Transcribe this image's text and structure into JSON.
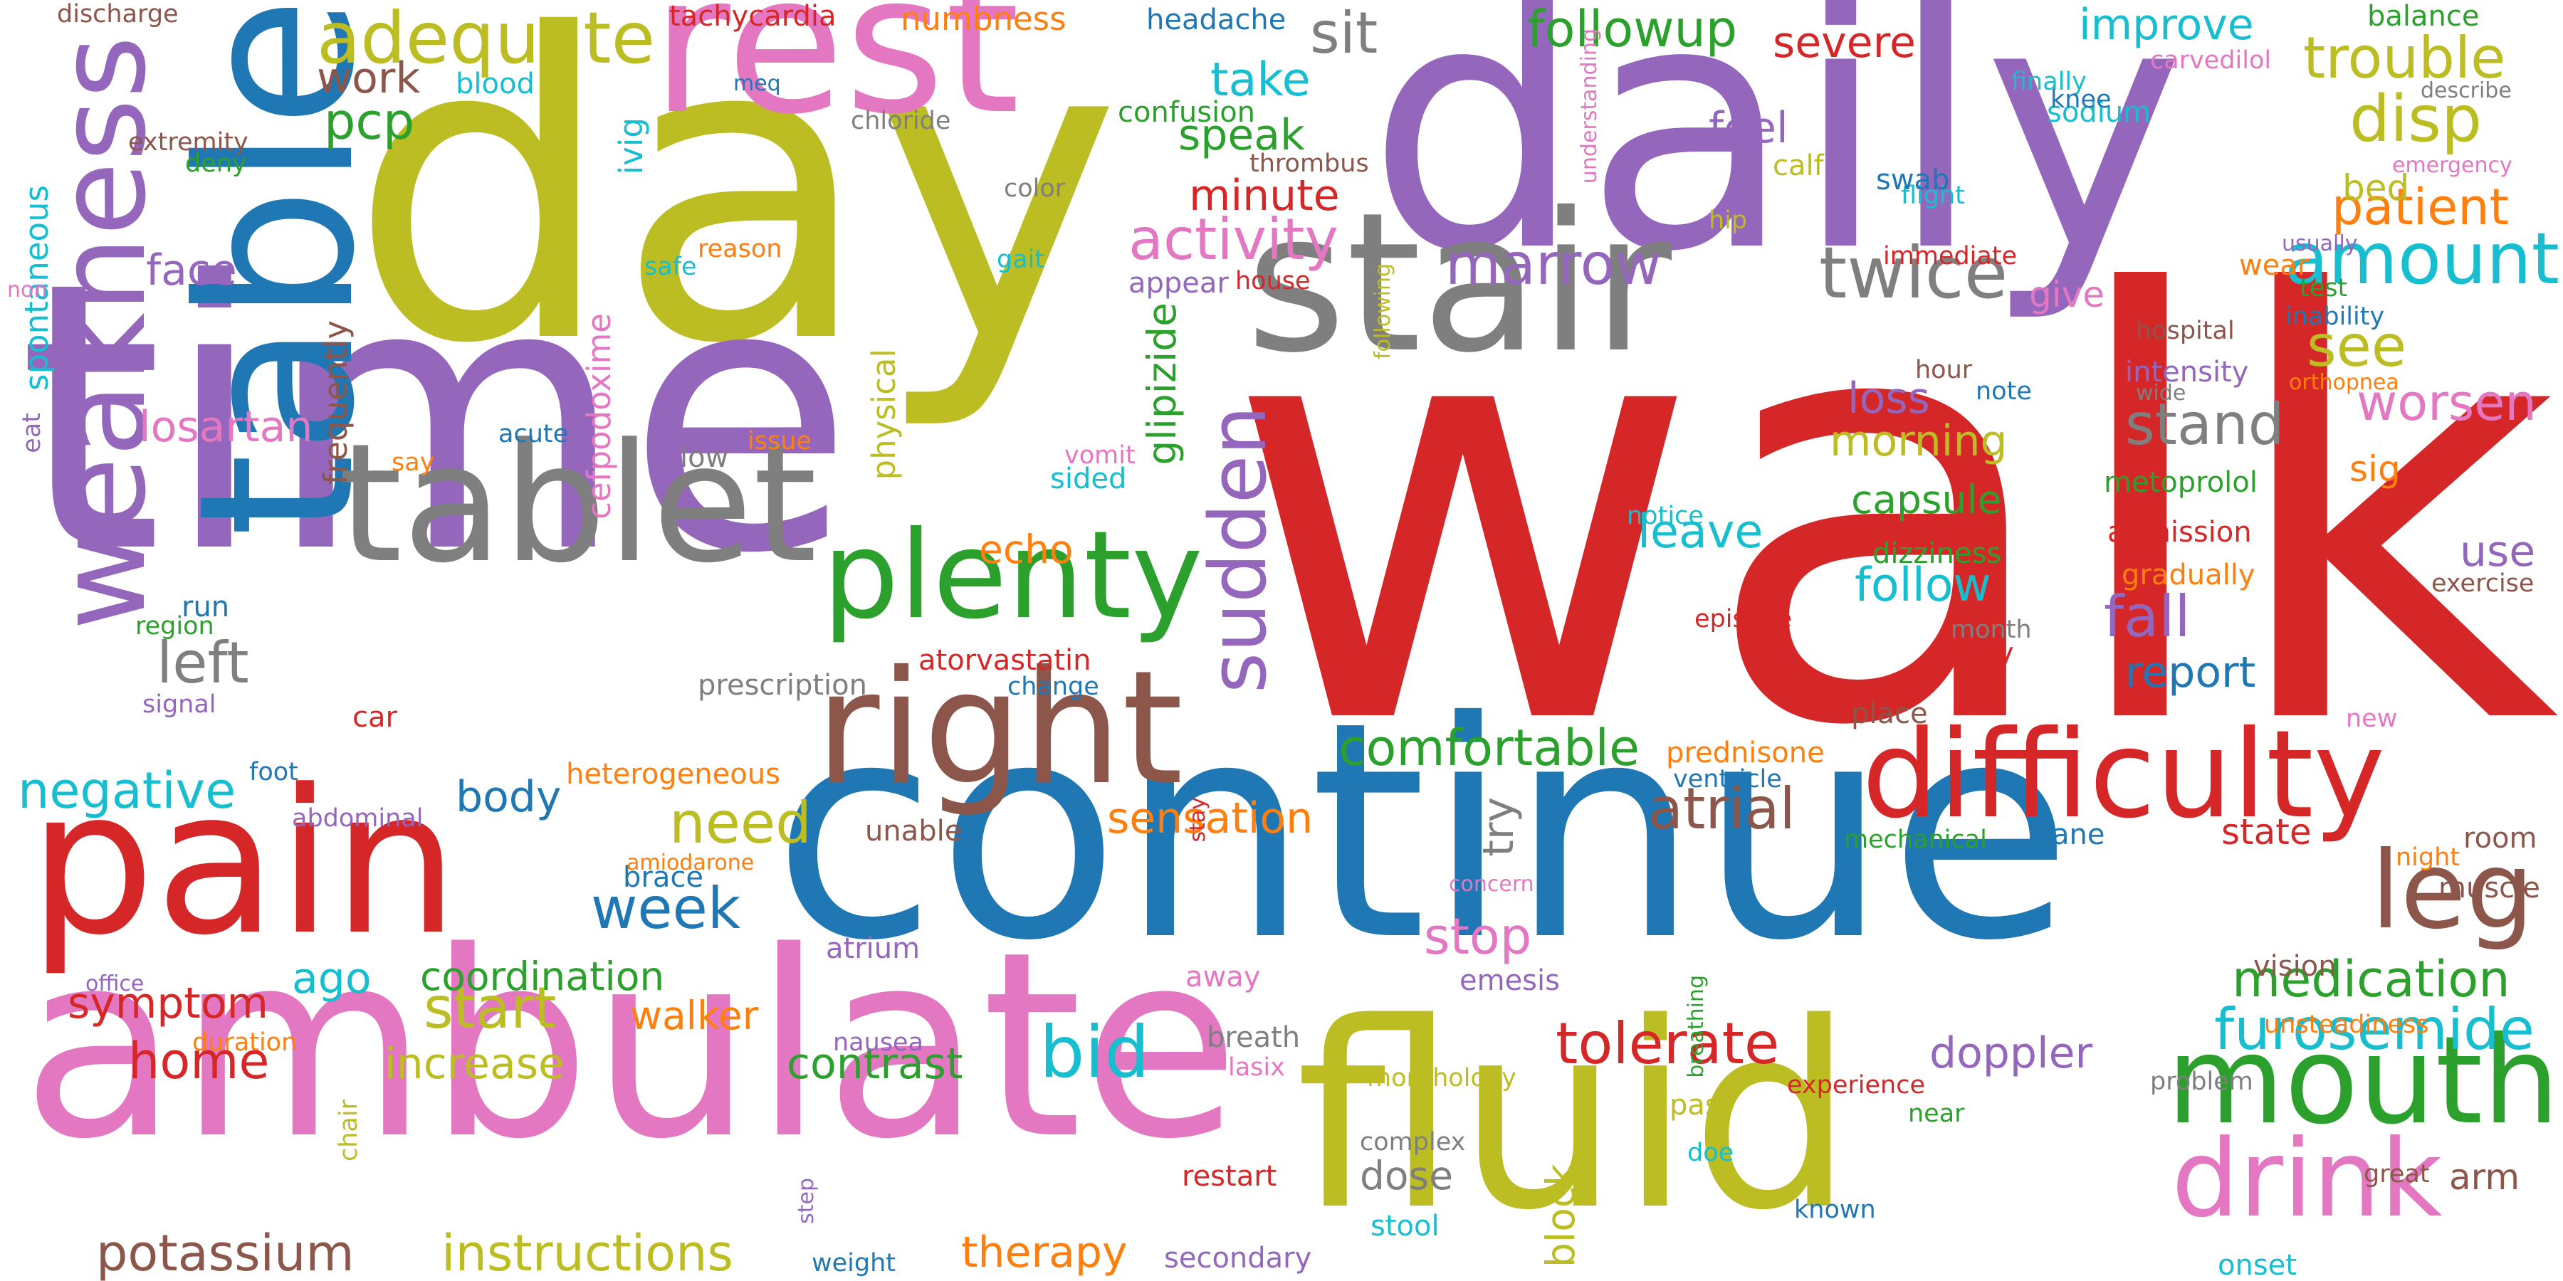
{
  "words": [
    {
      "text": "walk",
      "color": "#d62728"
    },
    {
      "text": "day",
      "color": "#bcbd22"
    },
    {
      "text": "time",
      "color": "#9467bd"
    },
    {
      "text": "daily",
      "color": "#9467bd"
    },
    {
      "text": "continue",
      "color": "#1f77b4"
    },
    {
      "text": "ambulate",
      "color": "#e377c2"
    },
    {
      "text": "fluid",
      "color": "#bcbd22"
    },
    {
      "text": "table",
      "color": "#1f77b4"
    },
    {
      "text": "rest",
      "color": "#e377c2"
    },
    {
      "text": "stair",
      "color": "#7f7f7f"
    },
    {
      "text": "pain",
      "color": "#d62728"
    },
    {
      "text": "tablet",
      "color": "#7f7f7f"
    },
    {
      "text": "right",
      "color": "#8c564b"
    },
    {
      "text": "plenty",
      "color": "#2ca02c"
    },
    {
      "text": "difficulty",
      "color": "#d62728"
    },
    {
      "text": "weakness",
      "color": "#9467bd"
    },
    {
      "text": "mouth",
      "color": "#2ca02c"
    },
    {
      "text": "drink",
      "color": "#e377c2"
    },
    {
      "text": "leg",
      "color": "#8c564b"
    },
    {
      "text": "amount",
      "color": "#17becf"
    },
    {
      "text": "adequate",
      "color": "#bcbd22"
    },
    {
      "text": "comfortable",
      "color": "#2ca02c"
    },
    {
      "text": "sudden",
      "color": "#9467bd"
    },
    {
      "text": "twice",
      "color": "#7f7f7f"
    },
    {
      "text": "marrow",
      "color": "#9467bd"
    },
    {
      "text": "activity",
      "color": "#e377c2"
    },
    {
      "text": "tolerate",
      "color": "#d62728"
    },
    {
      "text": "furosemide",
      "color": "#17becf"
    },
    {
      "text": "medication",
      "color": "#2ca02c"
    },
    {
      "text": "bid",
      "color": "#17becf"
    },
    {
      "text": "week",
      "color": "#1f77b4"
    },
    {
      "text": "need",
      "color": "#bcbd22"
    },
    {
      "text": "start",
      "color": "#bcbd22"
    },
    {
      "text": "stand",
      "color": "#7f7f7f"
    },
    {
      "text": "fall",
      "color": "#9467bd"
    },
    {
      "text": "atrial",
      "color": "#8c564b"
    },
    {
      "text": "sit",
      "color": "#7f7f7f"
    },
    {
      "text": "followup",
      "color": "#2ca02c"
    },
    {
      "text": "disp",
      "color": "#bcbd22"
    },
    {
      "text": "trouble",
      "color": "#bcbd22"
    },
    {
      "text": "patient",
      "color": "#ff7f0e"
    },
    {
      "text": "see",
      "color": "#bcbd22"
    },
    {
      "text": "worsen",
      "color": "#e377c2"
    },
    {
      "text": "negative",
      "color": "#17becf"
    },
    {
      "text": "left",
      "color": "#7f7f7f"
    },
    {
      "text": "symptom",
      "color": "#d62728"
    },
    {
      "text": "home",
      "color": "#d62728"
    },
    {
      "text": "contrast",
      "color": "#2ca02c"
    },
    {
      "text": "instructions",
      "color": "#bcbd22"
    },
    {
      "text": "potassium",
      "color": "#8c564b"
    },
    {
      "text": "therapy",
      "color": "#ff7f0e"
    },
    {
      "text": "sensation",
      "color": "#ff7f0e"
    },
    {
      "text": "stop",
      "color": "#e377c2"
    },
    {
      "text": "coordination",
      "color": "#2ca02c"
    },
    {
      "text": "increase",
      "color": "#bcbd22"
    },
    {
      "text": "walker",
      "color": "#ff7f0e"
    },
    {
      "text": "face",
      "color": "#9467bd"
    },
    {
      "text": "losartan",
      "color": "#e377c2"
    },
    {
      "text": "pcp",
      "color": "#2ca02c"
    },
    {
      "text": "work",
      "color": "#8c564b"
    },
    {
      "text": "take",
      "color": "#17becf"
    },
    {
      "text": "speak",
      "color": "#2ca02c"
    },
    {
      "text": "minute",
      "color": "#d62728"
    },
    {
      "text": "severe",
      "color": "#d62728"
    },
    {
      "text": "improve",
      "color": "#17becf"
    },
    {
      "text": "feel",
      "color": "#9467bd"
    },
    {
      "text": "loss",
      "color": "#9467bd"
    },
    {
      "text": "morning",
      "color": "#bcbd22"
    },
    {
      "text": "capsule",
      "color": "#2ca02c"
    },
    {
      "text": "leave",
      "color": "#17becf"
    },
    {
      "text": "follow",
      "color": "#17becf"
    },
    {
      "text": "report",
      "color": "#1f77b4"
    },
    {
      "text": "body",
      "color": "#1f77b4"
    },
    {
      "text": "echo",
      "color": "#ff7f0e"
    },
    {
      "text": "glipizide",
      "color": "#2ca02c"
    },
    {
      "text": "ago",
      "color": "#17becf"
    },
    {
      "text": "doppler",
      "color": "#9467bd"
    },
    {
      "text": "use",
      "color": "#9467bd"
    },
    {
      "text": "sig",
      "color": "#ff7f0e"
    },
    {
      "text": "bed",
      "color": "#bcbd22"
    },
    {
      "text": "give",
      "color": "#e377c2"
    },
    {
      "text": "try",
      "color": "#7f7f7f"
    },
    {
      "text": "block",
      "color": "#bcbd22"
    },
    {
      "text": "dose",
      "color": "#7f7f7f"
    },
    {
      "text": "state",
      "color": "#d62728"
    },
    {
      "text": "arm",
      "color": "#8c564b"
    },
    {
      "text": "cefpodoxime",
      "color": "#e377c2"
    },
    {
      "text": "frequently",
      "color": "#8c564b"
    },
    {
      "text": "spontaneous",
      "color": "#17becf"
    },
    {
      "text": "physical",
      "color": "#bcbd22"
    },
    {
      "text": "ivig",
      "color": "#17becf"
    },
    {
      "text": "numbness",
      "color": "#ff7f0e"
    },
    {
      "text": "tachycardia",
      "color": "#d62728"
    },
    {
      "text": "discharge",
      "color": "#8c564b"
    },
    {
      "text": "headache",
      "color": "#1f77b4"
    },
    {
      "text": "balance",
      "color": "#2ca02c"
    },
    {
      "text": "deny",
      "color": "#2ca02c"
    },
    {
      "text": "extremity",
      "color": "#8c564b"
    },
    {
      "text": "blood",
      "color": "#17becf"
    },
    {
      "text": "meq",
      "color": "#1f77b4"
    },
    {
      "text": "chloride",
      "color": "#7f7f7f"
    },
    {
      "text": "confusion",
      "color": "#2ca02c"
    },
    {
      "text": "thrombus",
      "color": "#8c564b"
    },
    {
      "text": "color",
      "color": "#7f7f7f"
    },
    {
      "text": "understanding",
      "color": "#e377c2"
    },
    {
      "text": "finally",
      "color": "#17becf"
    },
    {
      "text": "sodium",
      "color": "#17becf"
    },
    {
      "text": "knee",
      "color": "#1f77b4"
    },
    {
      "text": "carvedilol",
      "color": "#e377c2"
    },
    {
      "text": "describe",
      "color": "#7f7f7f"
    },
    {
      "text": "emergency",
      "color": "#e377c2"
    },
    {
      "text": "calf",
      "color": "#bcbd22"
    },
    {
      "text": "flight",
      "color": "#17becf"
    },
    {
      "text": "swab",
      "color": "#1f77b4"
    },
    {
      "text": "usually",
      "color": "#9467bd"
    },
    {
      "text": "hip",
      "color": "#bcbd22"
    },
    {
      "text": "reason",
      "color": "#ff7f0e"
    },
    {
      "text": "safe",
      "color": "#17becf"
    },
    {
      "text": "gait",
      "color": "#17becf"
    },
    {
      "text": "appear",
      "color": "#9467bd"
    },
    {
      "text": "house",
      "color": "#d62728"
    },
    {
      "text": "immediate",
      "color": "#d62728"
    },
    {
      "text": "wear",
      "color": "#ff7f0e"
    },
    {
      "text": "test",
      "color": "#2ca02c"
    },
    {
      "text": "inability",
      "color": "#1f77b4"
    },
    {
      "text": "following",
      "color": "#bcbd22"
    },
    {
      "text": "hospital",
      "color": "#8c564b"
    },
    {
      "text": "intensity",
      "color": "#9467bd"
    },
    {
      "text": "wide",
      "color": "#7f7f7f"
    },
    {
      "text": "orthopnea",
      "color": "#ff7f0e"
    },
    {
      "text": "hour",
      "color": "#8c564b"
    },
    {
      "text": "note",
      "color": "#1f77b4"
    },
    {
      "text": "non",
      "color": "#e377c2"
    },
    {
      "text": "eat",
      "color": "#9467bd"
    },
    {
      "text": "acute",
      "color": "#1f77b4"
    },
    {
      "text": "say",
      "color": "#ff7f0e"
    },
    {
      "text": "low",
      "color": "#7f7f7f"
    },
    {
      "text": "issue",
      "color": "#ff7f0e"
    },
    {
      "text": "vomit",
      "color": "#e377c2"
    },
    {
      "text": "sided",
      "color": "#17becf"
    },
    {
      "text": "metoprolol",
      "color": "#2ca02c"
    },
    {
      "text": "run",
      "color": "#1f77b4"
    },
    {
      "text": "region",
      "color": "#2ca02c"
    },
    {
      "text": "notice",
      "color": "#17becf"
    },
    {
      "text": "dizziness",
      "color": "#2ca02c"
    },
    {
      "text": "admission",
      "color": "#d62728"
    },
    {
      "text": "gradually",
      "color": "#ff7f0e"
    },
    {
      "text": "exercise",
      "color": "#8c564b"
    },
    {
      "text": "episode",
      "color": "#d62728"
    },
    {
      "text": "month",
      "color": "#7f7f7f"
    },
    {
      "text": "today",
      "color": "#d62728"
    },
    {
      "text": "signal",
      "color": "#9467bd"
    },
    {
      "text": "car",
      "color": "#d62728"
    },
    {
      "text": "prescription",
      "color": "#7f7f7f"
    },
    {
      "text": "atorvastatin",
      "color": "#d62728"
    },
    {
      "text": "change",
      "color": "#1f77b4"
    },
    {
      "text": "place",
      "color": "#8c564b"
    },
    {
      "text": "new",
      "color": "#e377c2"
    },
    {
      "text": "foot",
      "color": "#1f77b4"
    },
    {
      "text": "heterogeneous",
      "color": "#ff7f0e"
    },
    {
      "text": "stay",
      "color": "#d62728"
    },
    {
      "text": "prednisone",
      "color": "#ff7f0e"
    },
    {
      "text": "ventricle",
      "color": "#1f77b4"
    },
    {
      "text": "abdominal",
      "color": "#9467bd"
    },
    {
      "text": "unable",
      "color": "#8c564b"
    },
    {
      "text": "mechanical",
      "color": "#2ca02c"
    },
    {
      "text": "cane",
      "color": "#1f77b4"
    },
    {
      "text": "night",
      "color": "#ff7f0e"
    },
    {
      "text": "room",
      "color": "#8c564b"
    },
    {
      "text": "amiodarone",
      "color": "#ff7f0e"
    },
    {
      "text": "brace",
      "color": "#1f77b4"
    },
    {
      "text": "concern",
      "color": "#e377c2"
    },
    {
      "text": "breathing",
      "color": "#2ca02c"
    },
    {
      "text": "muscle",
      "color": "#8c564b"
    },
    {
      "text": "office",
      "color": "#9467bd"
    },
    {
      "text": "atrium",
      "color": "#9467bd"
    },
    {
      "text": "away",
      "color": "#e377c2"
    },
    {
      "text": "emesis",
      "color": "#9467bd"
    },
    {
      "text": "vision",
      "color": "#8c564b"
    },
    {
      "text": "duration",
      "color": "#ff7f0e"
    },
    {
      "text": "chair",
      "color": "#bcbd22"
    },
    {
      "text": "nausea",
      "color": "#9467bd"
    },
    {
      "text": "breath",
      "color": "#7f7f7f"
    },
    {
      "text": "lasix",
      "color": "#e377c2"
    },
    {
      "text": "unsteadiness",
      "color": "#ff7f0e"
    },
    {
      "text": "problem",
      "color": "#7f7f7f"
    },
    {
      "text": "morphology",
      "color": "#bcbd22"
    },
    {
      "text": "experience",
      "color": "#d62728"
    },
    {
      "text": "past",
      "color": "#bcbd22"
    },
    {
      "text": "near",
      "color": "#2ca02c"
    },
    {
      "text": "complex",
      "color": "#7f7f7f"
    },
    {
      "text": "step",
      "color": "#9467bd"
    },
    {
      "text": "restart",
      "color": "#d62728"
    },
    {
      "text": "doe",
      "color": "#17becf"
    },
    {
      "text": "great",
      "color": "#8c564b"
    },
    {
      "text": "known",
      "color": "#1f77b4"
    },
    {
      "text": "stool",
      "color": "#17becf"
    },
    {
      "text": "weight",
      "color": "#1f77b4"
    },
    {
      "text": "secondary",
      "color": "#9467bd"
    },
    {
      "text": "onset",
      "color": "#17becf"
    }
  ]
}
